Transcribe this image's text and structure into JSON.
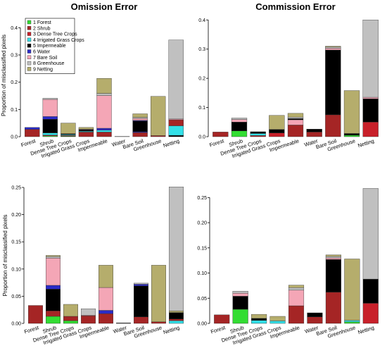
{
  "legend": [
    {
      "label": "1 Forest",
      "color": "#33dd33"
    },
    {
      "label": "2 Shrub",
      "color": "#a52525"
    },
    {
      "label": "3 Dense Tree Crops",
      "color": "#c8202a"
    },
    {
      "label": "4 Irrigated Grass Crops",
      "color": "#33e0e8"
    },
    {
      "label": "5 Impermeable",
      "color": "#000000"
    },
    {
      "label": "6 Water",
      "color": "#2b2bc8"
    },
    {
      "label": "7 Bare Soil",
      "color": "#f4a6b6"
    },
    {
      "label": "8 Greenhouse",
      "color": "#c0c0c0"
    },
    {
      "label": "9 Netting",
      "color": "#b5ad6c"
    }
  ],
  "chart_data": [
    {
      "type": "bar",
      "stacked": true,
      "title": "Omission Error",
      "ylabel": "Proportion of misclassified pixels",
      "ylim": [
        0,
        0.45
      ],
      "yticks": [
        "0.0",
        "0.1",
        "0.2",
        "0.3",
        "0.4"
      ],
      "ytick_values": [
        0,
        0.1,
        0.2,
        0.3,
        0.4
      ],
      "legend_position": "top-left",
      "categories": [
        "Forest",
        "Shrub",
        "Dense Tree Crops",
        "Irrigated Grass Crops",
        "Impermeable",
        "Water",
        "Bare Soil",
        "Greenhouse",
        "Netting"
      ],
      "stacks": [
        [
          [
            2,
            0.027
          ],
          [
            6,
            0.007
          ]
        ],
        [
          [
            1,
            0.003
          ],
          [
            3,
            0.003
          ],
          [
            4,
            0.008
          ],
          [
            5,
            0.05
          ],
          [
            6,
            0.01
          ],
          [
            7,
            0.063
          ],
          [
            8,
            0.004
          ],
          [
            9,
            0.0
          ]
        ],
        [
          [
            1,
            0.002
          ],
          [
            2,
            0.003
          ],
          [
            4,
            0.003
          ],
          [
            5,
            0.003
          ],
          [
            9,
            0.039
          ]
        ],
        [
          [
            2,
            0.017
          ],
          [
            4,
            0.003
          ],
          [
            5,
            0.005
          ],
          [
            7,
            0.002
          ],
          [
            8,
            0.001
          ],
          [
            9,
            0.006
          ]
        ],
        [
          [
            2,
            0.017
          ],
          [
            4,
            0.007
          ],
          [
            6,
            0.007
          ],
          [
            7,
            0.12
          ],
          [
            8,
            0.008
          ],
          [
            9,
            0.055
          ]
        ],
        [
          [
            5,
            0.001
          ]
        ],
        [
          [
            2,
            0.015
          ],
          [
            6,
            0.003
          ],
          [
            5,
            0.04
          ],
          [
            6,
            0.002
          ],
          [
            7,
            0.007
          ],
          [
            8,
            0.004
          ],
          [
            9,
            0.013
          ]
        ],
        [
          [
            2,
            0.004
          ],
          [
            9,
            0.144
          ]
        ],
        [
          [
            5,
            0.005
          ],
          [
            4,
            0.035
          ],
          [
            2,
            0.022
          ],
          [
            7,
            0.003
          ],
          [
            8,
            0.29
          ]
        ]
      ]
    },
    {
      "type": "bar",
      "stacked": true,
      "title": "Commission Error",
      "ylabel": "",
      "ylim": [
        0,
        0.42
      ],
      "yticks": [
        "0.0",
        "0.1",
        "0.2",
        "0.3",
        "0.4"
      ],
      "ytick_values": [
        0,
        0.1,
        0.2,
        0.3,
        0.4
      ],
      "categories": [
        "Forest",
        "Shrub",
        "Dense Tree Crops",
        "Irrigated Grass Crops",
        "Impermeable",
        "Water",
        "Bare Soil",
        "Greenhouse",
        "Netting"
      ],
      "stacks": [
        [
          [
            2,
            0.016
          ]
        ],
        [
          [
            1,
            0.02
          ],
          [
            5,
            0.03
          ],
          [
            7,
            0.009
          ],
          [
            8,
            0.005
          ]
        ],
        [
          [
            2,
            0.004
          ],
          [
            4,
            0.007
          ],
          [
            5,
            0.006
          ]
        ],
        [
          [
            3,
            0.013
          ],
          [
            5,
            0.012
          ],
          [
            9,
            0.048
          ]
        ],
        [
          [
            2,
            0.04
          ],
          [
            7,
            0.018
          ],
          [
            5,
            0.004
          ],
          [
            8,
            0.005
          ],
          [
            9,
            0.013
          ]
        ],
        [
          [
            2,
            0.016
          ],
          [
            5,
            0.01
          ]
        ],
        [
          [
            2,
            0.075
          ],
          [
            5,
            0.222
          ],
          [
            7,
            0.006
          ],
          [
            8,
            0.004
          ],
          [
            9,
            0.003
          ]
        ],
        [
          [
            1,
            0.005
          ],
          [
            5,
            0.006
          ],
          [
            9,
            0.147
          ]
        ],
        [
          [
            3,
            0.05
          ],
          [
            5,
            0.08
          ],
          [
            7,
            0.005
          ],
          [
            8,
            0.265
          ]
        ]
      ]
    },
    {
      "type": "bar",
      "stacked": true,
      "title": "",
      "ylabel": "Proportion of misclassified pixels",
      "ylim": [
        0,
        0.25
      ],
      "yticks": [
        "0.00",
        "0.05",
        "0.10",
        "0.15",
        "0.20",
        "0.25"
      ],
      "ytick_values": [
        0,
        0.05,
        0.1,
        0.15,
        0.2,
        0.25
      ],
      "categories": [
        "Forest",
        "Shrub",
        "Dense Tree Crops",
        "Irrigated Grass Crops",
        "Impermeable",
        "Water",
        "Bare Soil",
        "Greenhouse",
        "Netting"
      ],
      "stacks": [
        [
          [
            2,
            0.033
          ]
        ],
        [
          [
            1,
            0.013
          ],
          [
            2,
            0.01
          ],
          [
            5,
            0.04
          ],
          [
            6,
            0.007
          ],
          [
            7,
            0.05
          ],
          [
            8,
            0.003
          ],
          [
            9,
            0.002
          ]
        ],
        [
          [
            1,
            0.005
          ],
          [
            2,
            0.008
          ],
          [
            9,
            0.022
          ]
        ],
        [
          [
            2,
            0.014
          ],
          [
            7,
            0.001
          ],
          [
            8,
            0.012
          ]
        ],
        [
          [
            2,
            0.018
          ],
          [
            6,
            0.006
          ],
          [
            7,
            0.042
          ],
          [
            9,
            0.041
          ]
        ],
        [
          [
            5,
            0.001
          ]
        ],
        [
          [
            2,
            0.012
          ],
          [
            5,
            0.057
          ],
          [
            6,
            0.003
          ],
          [
            8,
            0.002
          ]
        ],
        [
          [
            2,
            0.003
          ],
          [
            9,
            0.104
          ]
        ],
        [
          [
            4,
            0.005
          ],
          [
            2,
            0.003
          ],
          [
            5,
            0.012
          ],
          [
            9,
            0.003
          ],
          [
            8,
            0.228
          ]
        ]
      ]
    },
    {
      "type": "bar",
      "stacked": true,
      "title": "",
      "ylabel": "",
      "ylim": [
        0,
        0.27
      ],
      "yticks": [
        "0.00",
        "0.05",
        "0.10",
        "0.15",
        "0.20",
        "0.25"
      ],
      "ytick_values": [
        0,
        0.05,
        0.1,
        0.15,
        0.2,
        0.25
      ],
      "categories": [
        "Forest",
        "Shrub",
        "Dense Tree Crops",
        "Irrigated Grass Crops",
        "Impermeable",
        "Water",
        "Bare Soil",
        "Greenhouse",
        "Netting"
      ],
      "stacks": [
        [
          [
            2,
            0.017
          ]
        ],
        [
          [
            1,
            0.028
          ],
          [
            5,
            0.026
          ],
          [
            7,
            0.006
          ],
          [
            8,
            0.004
          ]
        ],
        [
          [
            4,
            0.006
          ],
          [
            5,
            0.004
          ],
          [
            9,
            0.008
          ]
        ],
        [
          [
            4,
            0.005
          ],
          [
            9,
            0.009
          ]
        ],
        [
          [
            2,
            0.035
          ],
          [
            7,
            0.031
          ],
          [
            8,
            0.005
          ],
          [
            9,
            0.005
          ]
        ],
        [
          [
            2,
            0.013
          ],
          [
            5,
            0.008
          ]
        ],
        [
          [
            2,
            0.062
          ],
          [
            5,
            0.065
          ],
          [
            7,
            0.003
          ],
          [
            8,
            0.003
          ],
          [
            9,
            0.003
          ]
        ],
        [
          [
            1,
            0.003
          ],
          [
            4,
            0.003
          ],
          [
            9,
            0.122
          ]
        ],
        [
          [
            3,
            0.04
          ],
          [
            5,
            0.048
          ],
          [
            8,
            0.18
          ]
        ]
      ]
    }
  ]
}
